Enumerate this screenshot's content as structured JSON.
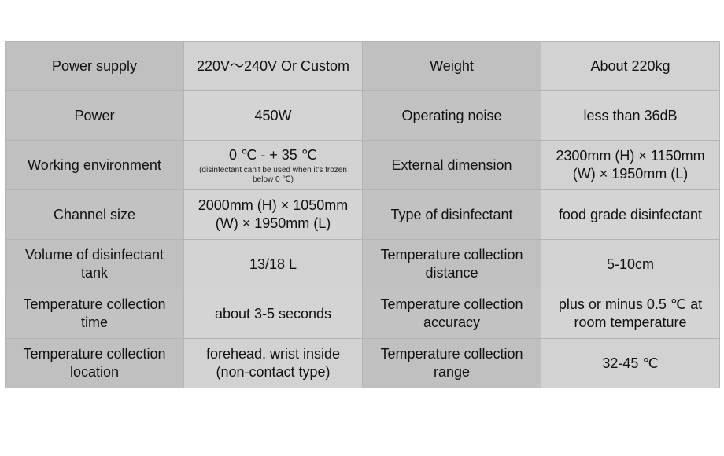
{
  "table": {
    "rows": [
      {
        "c1": "Power supply",
        "c2": "220V～240V Or Custom",
        "c3": "Weight",
        "c4": "About 220kg"
      },
      {
        "c1": "Power",
        "c2": "450W",
        "c3": "Operating noise",
        "c4": "less than 36dB"
      },
      {
        "c1": "Working environment",
        "c2": "0 ℃ - + 35 ℃",
        "c2_note": "(disinfectant can't be used when it's frozen below 0 ℃)",
        "c3": "External dimension",
        "c4": "2300mm (H) × 1150mm (W) × 1950mm (L)"
      },
      {
        "c1": "Channel size",
        "c2": "2000mm (H) × 1050mm (W) × 1950mm (L)",
        "c3": "Type of disinfectant",
        "c4": "food grade disinfectant"
      },
      {
        "c1": "Volume of disinfectant tank",
        "c2": "13/18 L",
        "c3": "Temperature collection distance",
        "c4": "5-10cm"
      },
      {
        "c1": "Temperature collection time",
        "c2": "about 3-5 seconds",
        "c3": "Temperature collection accuracy",
        "c4": "plus or minus 0.5 ℃ at room temperature"
      },
      {
        "c1": "Temperature collection location",
        "c2": "forehead, wrist inside (non-contact type)",
        "c3": "Temperature collection range",
        "c4": "32-45 ℃"
      }
    ]
  }
}
